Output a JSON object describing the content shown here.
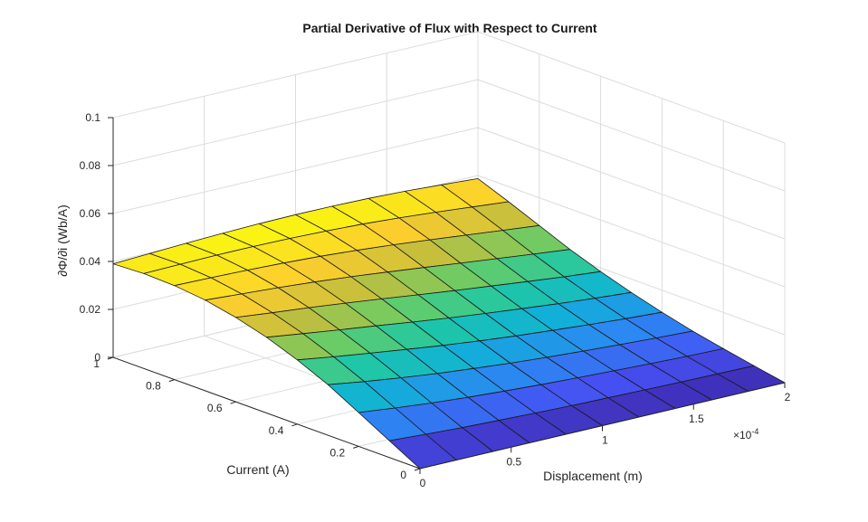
{
  "chart_data": {
    "type": "surface",
    "title": "Partial Derivative of Flux with Respect to Current",
    "xlabel": "Displacement (m)",
    "ylabel": "Current (A)",
    "zlabel": "∂Φ/∂i  (Wb/A)",
    "xlim": [
      0,
      0.0002
    ],
    "ylim": [
      0,
      1
    ],
    "zlim": [
      0,
      0.1
    ],
    "x_exponent_label": "×10",
    "x_exponent_power": "-4",
    "x_ticks": [
      0,
      0.5,
      1,
      1.5,
      2
    ],
    "x_tick_labels": [
      "0",
      "0.5",
      "1",
      "1.5",
      "2"
    ],
    "y_ticks": [
      0,
      0.2,
      0.4,
      0.6,
      0.8,
      1
    ],
    "y_tick_labels": [
      "0",
      "0.2",
      "0.4",
      "0.6",
      "0.8",
      "1"
    ],
    "z_ticks": [
      0,
      0.02,
      0.04,
      0.06,
      0.08,
      0.1
    ],
    "z_tick_labels": [
      "0",
      "0.02",
      "0.04",
      "0.06",
      "0.08",
      "0.1"
    ],
    "grid": true,
    "colormap": "parula",
    "x": [
      0,
      2e-05,
      4e-05,
      6e-05,
      8e-05,
      0.0001,
      0.00012,
      0.00014,
      0.00016,
      0.00018,
      0.0002
    ],
    "y": [
      0,
      0.1,
      0.2,
      0.3,
      0.4,
      0.5,
      0.6,
      0.7,
      0.8,
      0.9,
      1
    ],
    "z": [
      [
        0,
        0,
        0,
        0,
        0,
        0,
        0,
        0,
        0,
        0,
        0
      ],
      [
        0.007,
        0.0061,
        0.0053,
        0.0047,
        0.0042,
        0.0037,
        0.0034,
        0.0031,
        0.0028,
        0.0026,
        0.0024
      ],
      [
        0.0141,
        0.0124,
        0.0109,
        0.0097,
        0.0087,
        0.0078,
        0.0071,
        0.0064,
        0.0058,
        0.0053,
        0.0049
      ],
      [
        0.0211,
        0.0188,
        0.0168,
        0.015,
        0.0135,
        0.0121,
        0.011,
        0.01,
        0.0091,
        0.0083,
        0.0076
      ],
      [
        0.0268,
        0.0245,
        0.0224,
        0.0204,
        0.0185,
        0.0168,
        0.0153,
        0.014,
        0.0128,
        0.0117,
        0.0108
      ],
      [
        0.0316,
        0.0295,
        0.0275,
        0.0256,
        0.0236,
        0.0217,
        0.02,
        0.0184,
        0.0169,
        0.0156,
        0.0144
      ],
      [
        0.0352,
        0.0336,
        0.0321,
        0.0304,
        0.0286,
        0.0267,
        0.0249,
        0.0232,
        0.0215,
        0.0199,
        0.0185
      ],
      [
        0.0378,
        0.0368,
        0.0358,
        0.0346,
        0.0332,
        0.0316,
        0.0299,
        0.0281,
        0.0264,
        0.0247,
        0.0231
      ],
      [
        0.0392,
        0.0389,
        0.0385,
        0.0379,
        0.0371,
        0.036,
        0.0347,
        0.0332,
        0.0316,
        0.03,
        0.0284
      ],
      [
        0.0396,
        0.0399,
        0.0401,
        0.0401,
        0.0399,
        0.0394,
        0.0387,
        0.0377,
        0.0365,
        0.0351,
        0.0337
      ],
      [
        0.039,
        0.0397,
        0.0404,
        0.041,
        0.0414,
        0.0416,
        0.0415,
        0.0412,
        0.0406,
        0.0397,
        0.0387
      ]
    ]
  }
}
